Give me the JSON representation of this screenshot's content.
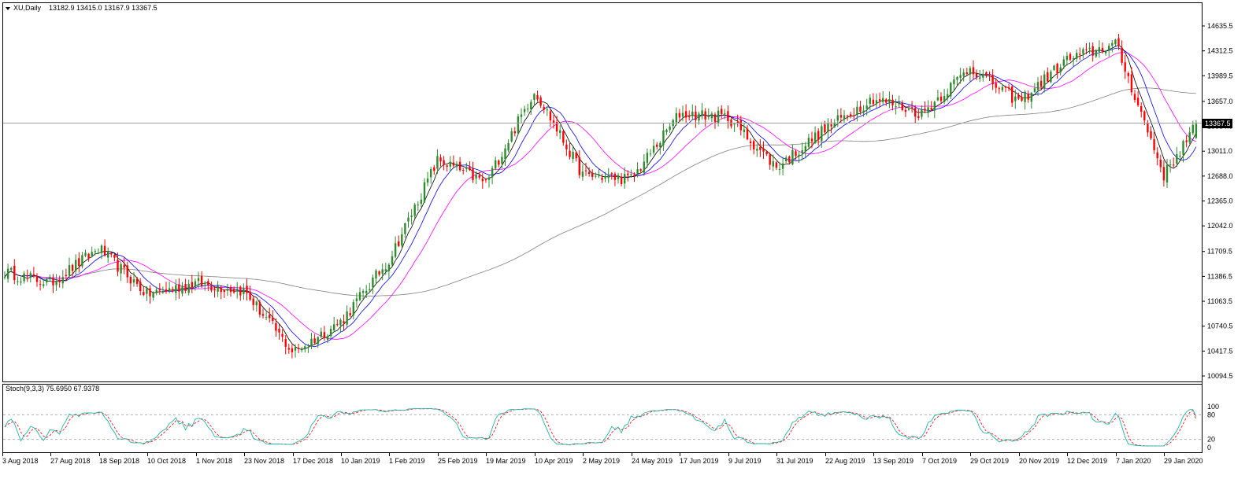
{
  "main_panel": {
    "symbol_label": "XU,Daily",
    "ohlc_label": "13182.9 13415.0 13167.9 13367.5",
    "current_price_label": "13367.5",
    "price_ticks": [
      "14635.5",
      "14312.5",
      "13989.5",
      "13657.0",
      "13334.5",
      "13011.0",
      "12688.0",
      "12365.0",
      "12042.0",
      "11709.5",
      "11386.5",
      "11063.5",
      "10740.5",
      "10417.5",
      "10094.5"
    ]
  },
  "stoch_panel": {
    "label": "Stoch(9,3,3) 75.6950 67.9378",
    "level_ticks": [
      "100",
      "80",
      "20",
      "0"
    ]
  },
  "time_axis": {
    "labels": [
      "3 Aug 2018",
      "27 Aug 2018",
      "18 Sep 2018",
      "10 Oct 2018",
      "1 Nov 2018",
      "23 Nov 2018",
      "17 Dec 2018",
      "10 Jan 2019",
      "1 Feb 2019",
      "25 Feb 2019",
      "19 Mar 2019",
      "10 Apr 2019",
      "2 May 2019",
      "24 May 2019",
      "17 Jun 2019",
      "9 Jul 2019",
      "31 Jul 2019",
      "22 Aug 2019",
      "13 Sep 2019",
      "7 Oct 2019",
      "29 Oct 2019",
      "20 Nov 2019",
      "12 Dec 2019",
      "7 Jan 2020",
      "29 Jan 2020"
    ]
  },
  "colors": {
    "bull": "#2e8b2e",
    "bear": "#ff0000",
    "ma_fast": "#000000",
    "ma_mid": "#0000ff",
    "ma_slow": "#ff00ff",
    "ma_long": "#808080",
    "stoch_main": "#20b2aa",
    "stoch_signal": "#ff0000"
  },
  "chart_data": {
    "type": "candlestick",
    "symbol": "XU",
    "timeframe": "Daily",
    "last_ohlc": {
      "open": 13182.9,
      "high": 13415.0,
      "low": 13167.9,
      "close": 13367.5
    },
    "price_range": [
      10094.5,
      14635.5
    ],
    "close_path": [
      [
        "3 Aug 2018",
        11450
      ],
      [
        "27 Aug 2018",
        11300
      ],
      [
        "18 Sep 2018",
        11750
      ],
      [
        "10 Oct 2018",
        11150
      ],
      [
        "1 Nov 2018",
        11300
      ],
      [
        "23 Nov 2018",
        11200
      ],
      [
        "17 Dec 2018",
        10400
      ],
      [
        "10 Jan 2019",
        10800
      ],
      [
        "1 Feb 2019",
        11600
      ],
      [
        "25 Feb 2019",
        12900
      ],
      [
        "19 Mar 2019",
        12600
      ],
      [
        "10 Apr 2019",
        13800
      ],
      [
        "2 May 2019",
        12700
      ],
      [
        "24 May 2019",
        12650
      ],
      [
        "17 Jun 2019",
        13500
      ],
      [
        "9 Jul 2019",
        13450
      ],
      [
        "31 Jul 2019",
        12800
      ],
      [
        "22 Aug 2019",
        13300
      ],
      [
        "13 Sep 2019",
        13700
      ],
      [
        "7 Oct 2019",
        13500
      ],
      [
        "29 Oct 2019",
        14100
      ],
      [
        "20 Nov 2019",
        13650
      ],
      [
        "12 Dec 2019",
        14200
      ],
      [
        "7 Jan 2020",
        14400
      ],
      [
        "29 Jan 2020",
        12700
      ],
      [
        "end",
        13367.5
      ]
    ],
    "stochastic": {
      "params": "9,3,3",
      "main": 75.695,
      "signal": 67.9378,
      "levels": [
        80,
        20
      ]
    }
  }
}
